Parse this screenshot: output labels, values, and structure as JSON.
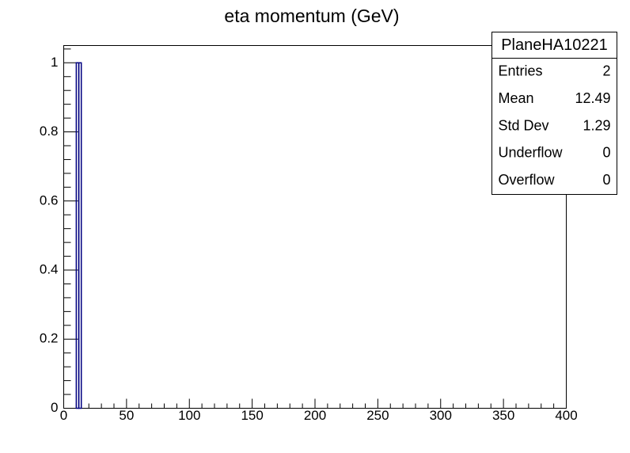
{
  "chart_data": {
    "type": "histogram",
    "title": "eta momentum (GeV)",
    "bins": [
      10,
      12,
      14
    ],
    "counts": [
      1,
      1
    ],
    "color": "#000080",
    "xlim": [
      0,
      400
    ],
    "xticks": [
      0,
      50,
      100,
      150,
      200,
      250,
      300,
      350,
      400
    ],
    "ylim": [
      0,
      1.05
    ],
    "yticks": [
      0,
      0.2,
      0.4,
      0.6,
      0.8,
      1
    ],
    "stats": {
      "title": "PlaneHA10221",
      "rows": [
        {
          "label": "Entries",
          "value": 2
        },
        {
          "label": "Mean",
          "value": 12.49
        },
        {
          "label": "Std Dev",
          "value": 1.29
        },
        {
          "label": "Underflow",
          "value": 0
        },
        {
          "label": "Overflow",
          "value": 0
        }
      ]
    }
  }
}
